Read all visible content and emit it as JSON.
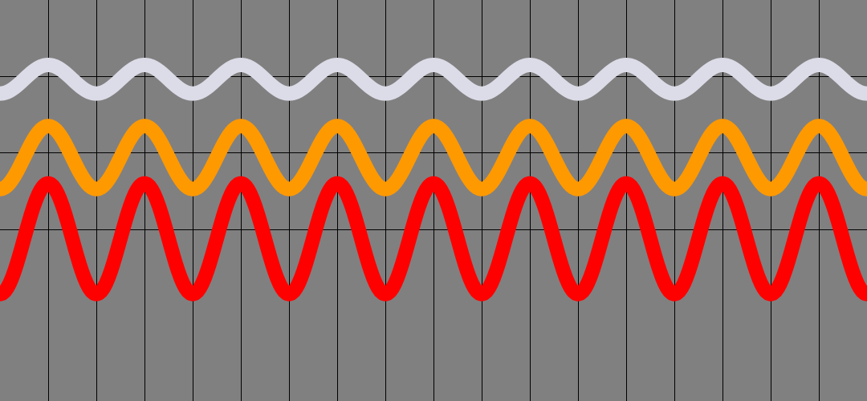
{
  "background_color": "#808080",
  "chart_data": {
    "type": "line",
    "title": "",
    "xlabel": "",
    "ylabel": "",
    "xlim": [
      0,
      9
    ],
    "ylim": [
      -4.2,
      0
    ],
    "grid": true,
    "grid_color": "#000000",
    "grid_x_spacing": 0.5,
    "grid_y_values": [
      -0.8,
      -1.6,
      -2.4
    ],
    "legend": "none",
    "sample_step": 0.025,
    "series": [
      {
        "color": "#dcdce8",
        "line_width": "thick",
        "function": "sine",
        "period": 1,
        "phase_peak_x": 0.5,
        "center": -0.83,
        "amplitude": 0.15
      },
      {
        "color": "#ff9900",
        "line_width": "thick",
        "function": "sine",
        "period": 1,
        "phase_peak_x": 0.5,
        "center": -1.65,
        "amplitude": 0.33
      },
      {
        "color": "#ff0000",
        "line_width": "thick",
        "function": "sine",
        "period": 1,
        "phase_peak_x": 0.5,
        "center": -2.5,
        "amplitude": 0.58
      }
    ]
  }
}
